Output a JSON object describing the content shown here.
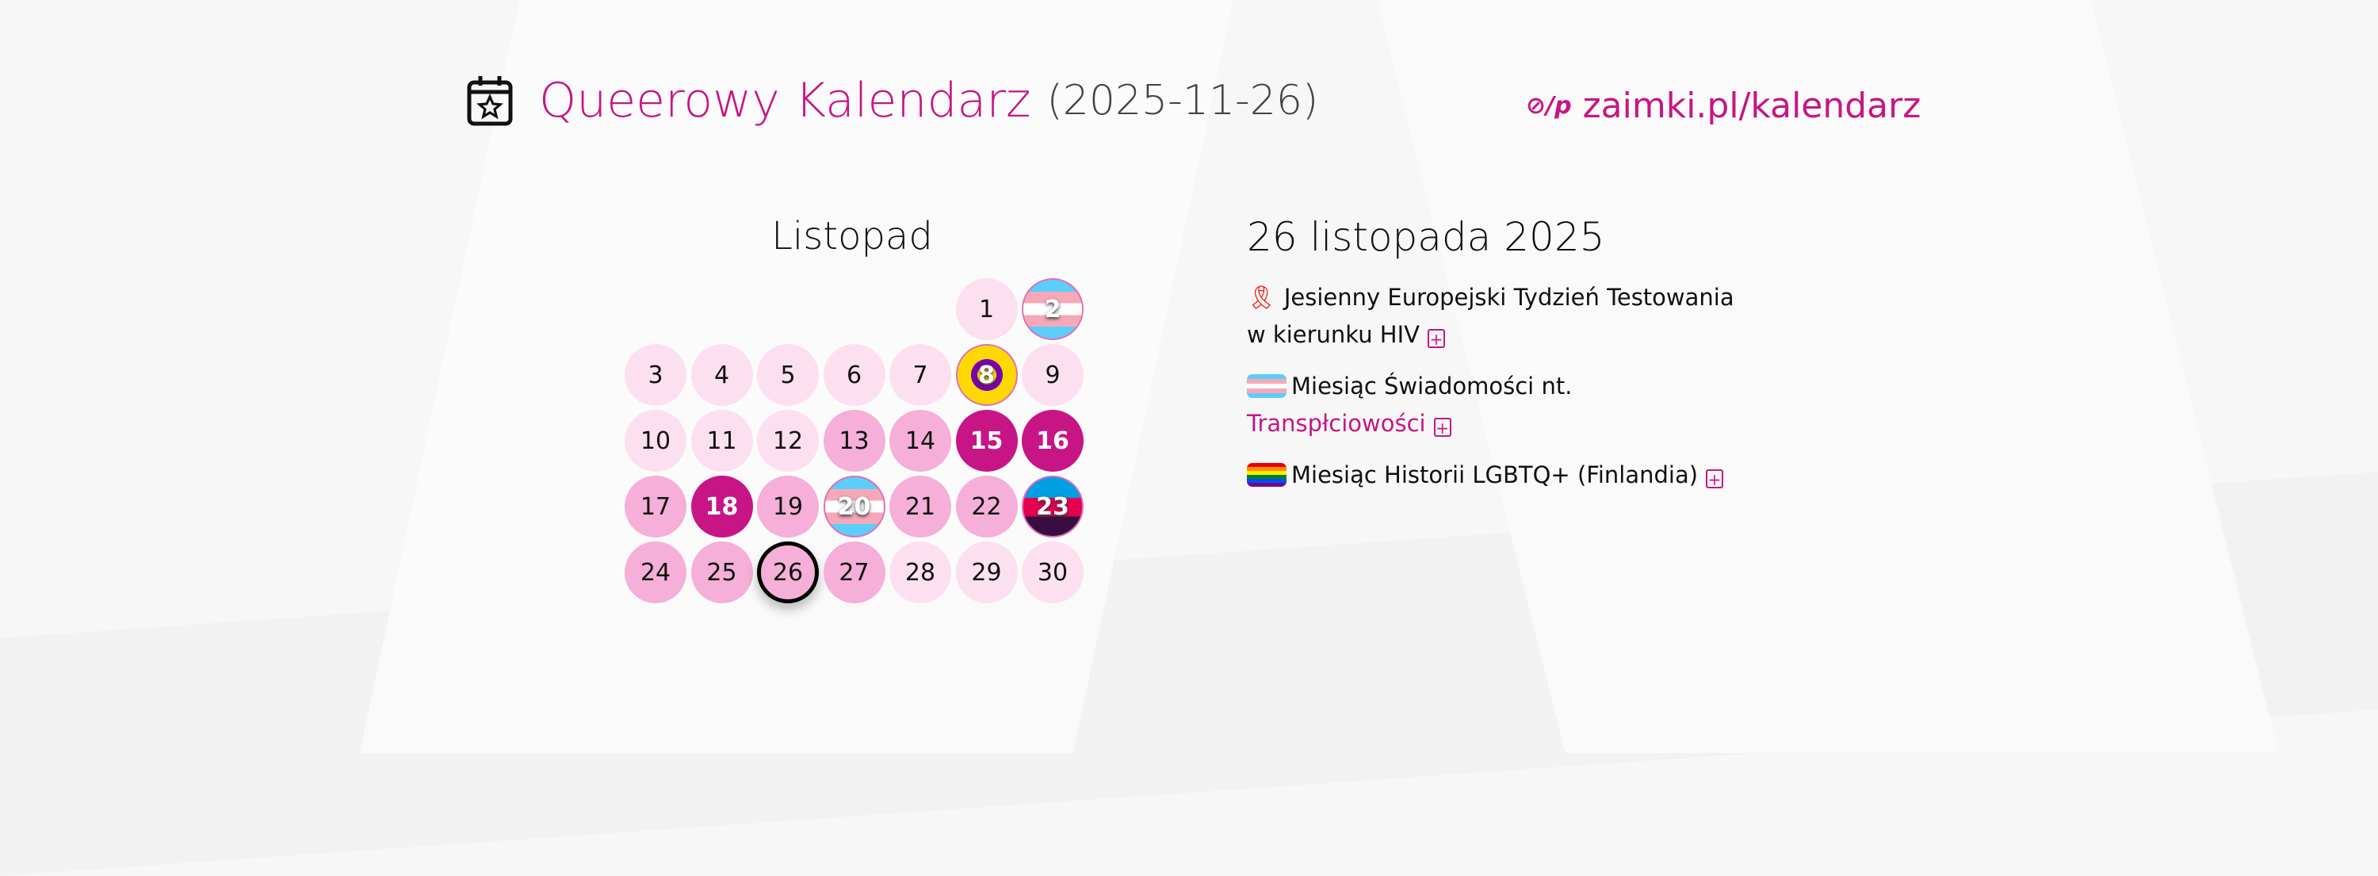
{
  "header": {
    "title": "Queerowy Kalendarz",
    "date": "(2025-11-26)",
    "link_logo": "⊘/p",
    "link": "zaimki.pl/kalendarz"
  },
  "calendar": {
    "month": "Listopad",
    "first_weekday_index": 5,
    "today": 26,
    "days": [
      {
        "n": "1",
        "style": "l0"
      },
      {
        "n": "2",
        "style": "flag trans"
      },
      {
        "n": "3",
        "style": "l0"
      },
      {
        "n": "4",
        "style": "l0"
      },
      {
        "n": "5",
        "style": "l0"
      },
      {
        "n": "6",
        "style": "l0"
      },
      {
        "n": "7",
        "style": "l0"
      },
      {
        "n": "8",
        "style": "flag inter"
      },
      {
        "n": "9",
        "style": "l0"
      },
      {
        "n": "10",
        "style": "l0"
      },
      {
        "n": "11",
        "style": "l0"
      },
      {
        "n": "12",
        "style": "l0"
      },
      {
        "n": "13",
        "style": "l1"
      },
      {
        "n": "14",
        "style": "l1"
      },
      {
        "n": "15",
        "style": "l2"
      },
      {
        "n": "16",
        "style": "l2"
      },
      {
        "n": "17",
        "style": "l1"
      },
      {
        "n": "18",
        "style": "l2"
      },
      {
        "n": "19",
        "style": "l1"
      },
      {
        "n": "20",
        "style": "flag trans"
      },
      {
        "n": "21",
        "style": "l1"
      },
      {
        "n": "22",
        "style": "l1"
      },
      {
        "n": "23",
        "style": "flag f23"
      },
      {
        "n": "24",
        "style": "l1"
      },
      {
        "n": "25",
        "style": "l1"
      },
      {
        "n": "26",
        "style": "l1 today"
      },
      {
        "n": "27",
        "style": "l1"
      },
      {
        "n": "28",
        "style": "l0"
      },
      {
        "n": "29",
        "style": "l0"
      },
      {
        "n": "30",
        "style": "l0"
      }
    ]
  },
  "details": {
    "title": "26 listopada 2025",
    "events": [
      {
        "icon": "🎗",
        "text": "Jesienny Europejski Tydzień Testowania w kierunku HIV"
      },
      {
        "text": "Miesiąc Świadomości nt.",
        "link": "Transpłciowości"
      },
      {
        "text": "Miesiąc Historii LGBTQ+ (Finlandia)"
      }
    ],
    "add_icon": "+"
  },
  "colors": {
    "accent": "#c71585",
    "light": "#fde0ef",
    "mid": "#f5afd8"
  }
}
